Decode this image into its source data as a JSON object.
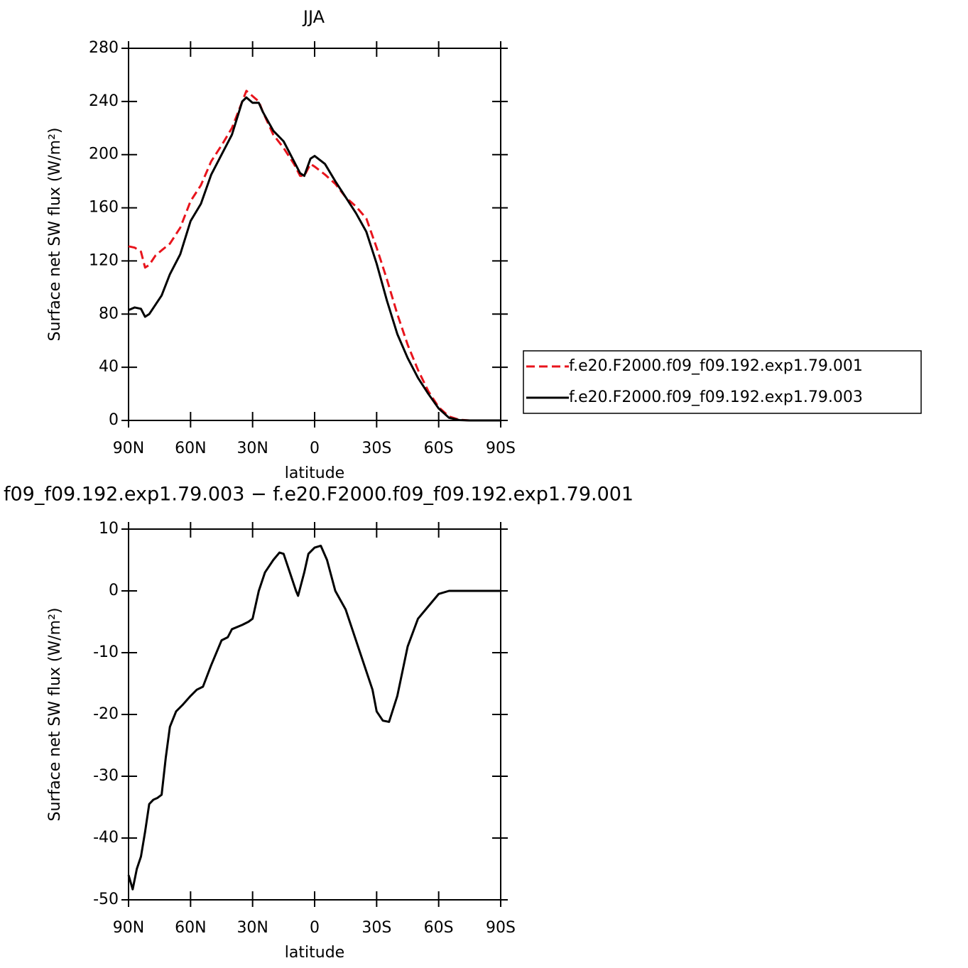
{
  "chart_data": [
    {
      "type": "line",
      "title": "JJA",
      "xlabel": "latitude",
      "ylabel": "Surface net SW flux (W/m²)",
      "x": [
        90,
        87,
        84,
        82,
        80,
        77,
        74,
        70,
        65,
        60,
        55,
        50,
        45,
        40,
        35,
        33,
        30,
        27,
        25,
        20,
        15,
        10,
        7,
        5,
        2,
        0,
        -5,
        -10,
        -15,
        -20,
        -25,
        -30,
        -35,
        -40,
        -45,
        -50,
        -55,
        -60,
        -65,
        -70,
        -75,
        -80,
        -85,
        -90
      ],
      "series": [
        {
          "name": "f.e20.F2000.f09_f09.192.exp1.79.001",
          "color": "#e8141c",
          "line_style": "dashed",
          "values": [
            131,
            130,
            127,
            115,
            117,
            124,
            128,
            133,
            145,
            165,
            177,
            195,
            207,
            220,
            240,
            248,
            244,
            240,
            232,
            215,
            205,
            193,
            184,
            184,
            193,
            191,
            185,
            178,
            168,
            161,
            152,
            130,
            106,
            80,
            57,
            38,
            22,
            10,
            3,
            0.5,
            0,
            0,
            0,
            0
          ]
        },
        {
          "name": "f.e20.F2000.f09_f09.192.exp1.79.003",
          "color": "#000000",
          "line_style": "solid",
          "values": [
            83,
            85,
            84,
            78,
            80,
            87,
            94,
            110,
            125,
            150,
            163,
            185,
            200,
            215,
            240,
            243,
            239,
            239,
            232,
            218,
            210,
            195,
            186,
            184,
            197,
            199,
            193,
            180,
            168,
            156,
            142,
            118,
            90,
            65,
            47,
            32,
            20,
            9,
            2,
            0.3,
            0,
            0,
            0,
            0
          ]
        }
      ],
      "xlim": [
        90,
        -90
      ],
      "xticks": [
        {
          "value": 90,
          "label": "90N"
        },
        {
          "value": 60,
          "label": "60N"
        },
        {
          "value": 30,
          "label": "30N"
        },
        0,
        {
          "value": -30,
          "label": "30S"
        },
        {
          "value": -60,
          "label": "60S"
        },
        {
          "value": -90,
          "label": "90S"
        }
      ],
      "ylim": [
        0,
        280
      ],
      "yticks": [
        0,
        40,
        80,
        120,
        160,
        200,
        240,
        280
      ],
      "grid": false,
      "legend": "outside-right"
    },
    {
      "type": "line",
      "title": "f09_f09.192.exp1.79.003 − f.e20.F2000.f09_f09.192.exp1.79.001",
      "xlabel": "latitude",
      "ylabel": "Surface net SW flux (W/m²)",
      "x": [
        90,
        88,
        86,
        84,
        82,
        80,
        78,
        76,
        74,
        72,
        70,
        67,
        64,
        60,
        57,
        54,
        50,
        45,
        42,
        40,
        35,
        32,
        30,
        27,
        24,
        20,
        17,
        15,
        12,
        9,
        8,
        5,
        3,
        0,
        -3,
        -6,
        -10,
        -15,
        -20,
        -25,
        -28,
        -30,
        -33,
        -36,
        -40,
        -45,
        -50,
        -55,
        -60,
        -65,
        -70,
        -80,
        -90
      ],
      "values": [
        -46,
        -48.3,
        -45,
        -43,
        -39,
        -34.5,
        -33.8,
        -33.5,
        -33,
        -27,
        -22,
        -19.5,
        -18.5,
        -17,
        -16,
        -15.5,
        -12,
        -8,
        -7.5,
        -6.2,
        -5.5,
        -5,
        -4.5,
        0,
        3,
        5,
        6.2,
        6,
        3,
        0,
        -0.8,
        3,
        6,
        7,
        7.3,
        5,
        0,
        -3,
        -8,
        -13,
        -16,
        -19.5,
        -21,
        -21.2,
        -17,
        -9,
        -4.5,
        -2.5,
        -0.5,
        0,
        0,
        0,
        0
      ],
      "color": "#000000",
      "line_style": "solid",
      "xlim": [
        90,
        -90
      ],
      "xticks": [
        {
          "value": 90,
          "label": "90N"
        },
        {
          "value": 60,
          "label": "60N"
        },
        {
          "value": 30,
          "label": "30N"
        },
        0,
        {
          "value": -30,
          "label": "30S"
        },
        {
          "value": -60,
          "label": "60S"
        },
        {
          "value": -90,
          "label": "90S"
        }
      ],
      "ylim": [
        -50,
        10
      ],
      "yticks": [
        -50,
        -40,
        -30,
        -20,
        -10,
        0,
        10
      ],
      "grid": false
    }
  ]
}
